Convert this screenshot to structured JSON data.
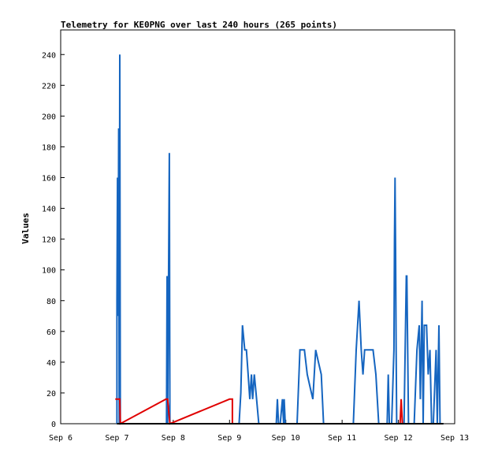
{
  "chart_data": {
    "type": "line",
    "title": "Telemetry for KE0PNG over last 240 hours (265 points)",
    "xlabel": "",
    "ylabel": "Values",
    "x_ticks": [
      "Sep 6",
      "Sep 7",
      "Sep 8",
      "Sep 9",
      "Sep 10",
      "Sep 11",
      "Sep 12",
      "Sep 13"
    ],
    "y_ticks": [
      0,
      20,
      40,
      60,
      80,
      100,
      120,
      140,
      160,
      180,
      200,
      220,
      240
    ],
    "xlim": [
      0,
      7
    ],
    "ylim": [
      0,
      256
    ],
    "grid": false,
    "legend": "none",
    "colors": {
      "series_a": "#1565c0",
      "series_b": "#e00000",
      "series_c": "#000000"
    },
    "series": [
      {
        "values": [
          [
            1.0,
            0
          ],
          [
            1.0,
            80
          ],
          [
            1.01,
            160
          ],
          [
            1.02,
            70
          ],
          [
            1.03,
            192
          ],
          [
            1.04,
            0
          ],
          [
            1.05,
            240
          ],
          [
            1.06,
            0
          ],
          [
            1.88,
            0
          ],
          [
            1.89,
            96
          ],
          [
            1.9,
            0
          ],
          [
            1.93,
            176
          ],
          [
            1.94,
            0
          ],
          [
            3.17,
            0
          ],
          [
            3.2,
            20
          ],
          [
            3.23,
            64
          ],
          [
            3.27,
            48
          ],
          [
            3.3,
            48
          ],
          [
            3.33,
            32
          ],
          [
            3.36,
            16
          ],
          [
            3.39,
            32
          ],
          [
            3.41,
            16
          ],
          [
            3.44,
            32
          ],
          [
            3.47,
            20
          ],
          [
            3.52,
            0
          ],
          [
            3.6,
            0
          ],
          [
            3.83,
            0
          ],
          [
            3.85,
            16
          ],
          [
            3.87,
            0
          ],
          [
            3.9,
            0
          ],
          [
            3.94,
            16
          ],
          [
            3.96,
            0
          ],
          [
            3.97,
            16
          ],
          [
            3.99,
            0
          ],
          [
            4.2,
            0
          ],
          [
            4.25,
            48
          ],
          [
            4.33,
            48
          ],
          [
            4.38,
            32
          ],
          [
            4.43,
            24
          ],
          [
            4.48,
            16
          ],
          [
            4.53,
            48
          ],
          [
            4.58,
            40
          ],
          [
            4.63,
            32
          ],
          [
            4.67,
            0
          ],
          [
            4.75,
            0
          ],
          [
            5.2,
            0
          ],
          [
            5.25,
            48
          ],
          [
            5.3,
            80
          ],
          [
            5.34,
            48
          ],
          [
            5.37,
            32
          ],
          [
            5.4,
            48
          ],
          [
            5.55,
            48
          ],
          [
            5.6,
            32
          ],
          [
            5.65,
            0
          ],
          [
            5.75,
            0
          ],
          [
            5.8,
            0
          ],
          [
            5.82,
            32
          ],
          [
            5.84,
            0
          ],
          [
            5.88,
            0
          ],
          [
            5.92,
            48
          ],
          [
            5.93,
            120
          ],
          [
            5.94,
            160
          ],
          [
            5.95,
            112
          ],
          [
            5.96,
            48
          ],
          [
            5.97,
            0
          ],
          [
            6.1,
            0
          ],
          [
            6.14,
            96
          ],
          [
            6.15,
            96
          ],
          [
            6.18,
            0
          ],
          [
            6.28,
            0
          ],
          [
            6.33,
            48
          ],
          [
            6.37,
            64
          ],
          [
            6.39,
            16
          ],
          [
            6.42,
            80
          ],
          [
            6.44,
            0
          ],
          [
            6.46,
            64
          ],
          [
            6.5,
            64
          ],
          [
            6.53,
            32
          ],
          [
            6.56,
            48
          ],
          [
            6.59,
            0
          ],
          [
            6.62,
            0
          ],
          [
            6.67,
            48
          ],
          [
            6.69,
            0
          ],
          [
            6.72,
            64
          ],
          [
            6.74,
            0
          ],
          [
            6.8,
            0
          ]
        ]
      },
      {
        "values": [
          [
            0.97,
            16
          ],
          [
            1.03,
            16
          ],
          [
            1.05,
            16
          ],
          [
            1.06,
            0
          ],
          [
            1.87,
            16
          ],
          [
            1.9,
            16
          ],
          [
            1.92,
            8
          ],
          [
            1.94,
            0
          ],
          [
            3.0,
            16
          ],
          [
            3.05,
            16
          ],
          [
            3.05,
            0
          ],
          [
            5.82,
            0
          ],
          [
            6.03,
            0
          ],
          [
            6.05,
            16
          ],
          [
            6.07,
            0
          ]
        ]
      },
      {
        "values": [
          [
            1.0,
            0
          ],
          [
            6.8,
            0
          ]
        ]
      }
    ]
  }
}
